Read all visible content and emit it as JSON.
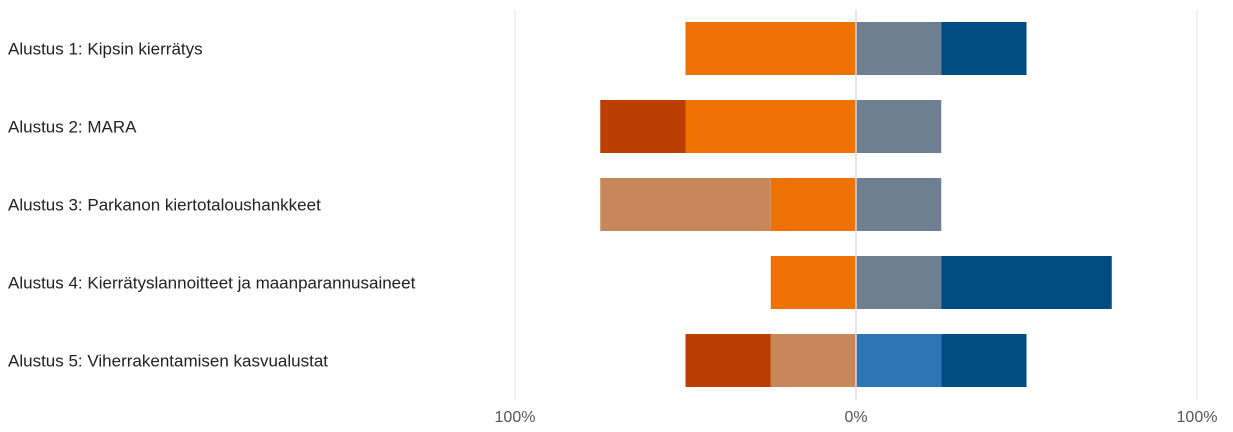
{
  "chart_data": {
    "type": "bar",
    "orientation": "horizontal",
    "stacking": "diverging",
    "title": "",
    "xlabel": "",
    "ylabel": "",
    "xlim": [
      -100,
      100
    ],
    "grid": true,
    "legend": "none",
    "x_ticks": [
      {
        "value": -100,
        "label": "100%"
      },
      {
        "value": 0,
        "label": "0%"
      },
      {
        "value": 100,
        "label": "100%"
      }
    ],
    "categories": [
      "Alustus 1: Kipsin kierrätys",
      "Alustus 2: MARA",
      "Alustus 3: Parkanon kiertotaloushankkeet",
      "Alustus 4: Kierrätyslannoitteet ja maanparannusaineet",
      "Alustus 5: Viherrakentamisen kasvualustat"
    ],
    "series": [
      {
        "color": "#bb3e03",
        "values": [
          0,
          -25,
          0,
          0,
          -25
        ]
      },
      {
        "color": "#ee7203",
        "values": [
          -50,
          -50,
          -25,
          -25,
          0
        ]
      },
      {
        "color": "#c8875a",
        "values": [
          0,
          0,
          -50,
          0,
          -25
        ]
      },
      {
        "color": "#6e7f91",
        "values": [
          25,
          25,
          25,
          25,
          0
        ]
      },
      {
        "color": "#2e75b6",
        "values": [
          0,
          0,
          0,
          0,
          25
        ]
      },
      {
        "color": "#004b80",
        "values": [
          25,
          0,
          0,
          50,
          25
        ]
      }
    ],
    "negative_stack_order": [
      1,
      2,
      0
    ],
    "positive_stack_order": [
      3,
      4,
      5
    ]
  }
}
